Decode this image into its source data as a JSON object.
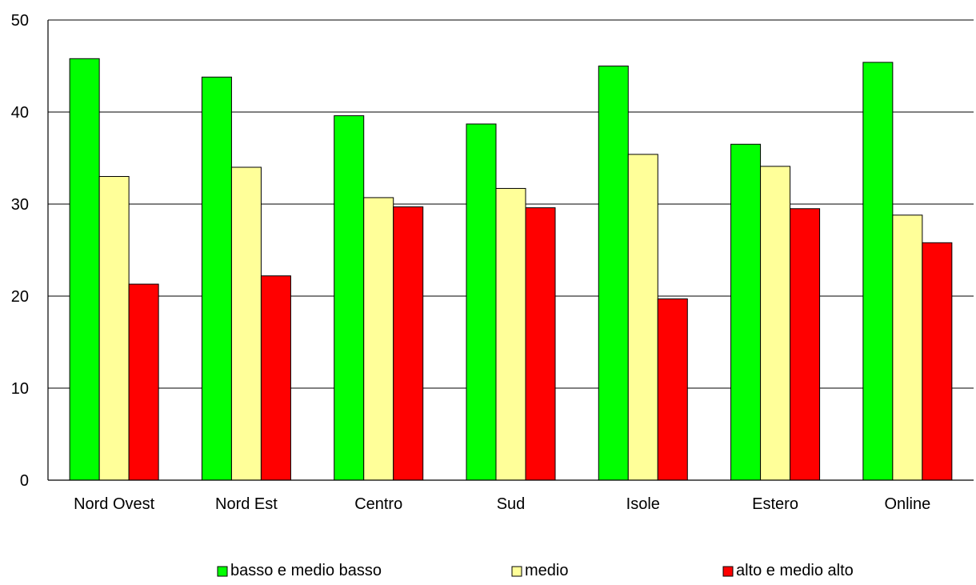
{
  "chart_data": {
    "type": "bar",
    "title": "",
    "xlabel": "",
    "ylabel": "",
    "ylim": [
      0,
      50
    ],
    "yticks": [
      0,
      10,
      20,
      30,
      40,
      50
    ],
    "grid": true,
    "legend_position": "bottom",
    "categories": [
      "Nord Ovest",
      "Nord Est",
      "Centro",
      "Sud",
      "Isole",
      "Estero",
      "Online"
    ],
    "series": [
      {
        "name": "basso e medio basso",
        "color": "#00ff00",
        "values": [
          45.8,
          43.8,
          39.6,
          38.7,
          45.0,
          36.5,
          45.4
        ]
      },
      {
        "name": "medio",
        "color": "#ffff99",
        "values": [
          33.0,
          34.0,
          30.7,
          31.7,
          35.4,
          34.1,
          28.8
        ]
      },
      {
        "name": "alto e medio alto",
        "color": "#ff0000",
        "values": [
          21.3,
          22.2,
          29.7,
          29.6,
          19.7,
          29.5,
          25.8
        ]
      }
    ]
  }
}
